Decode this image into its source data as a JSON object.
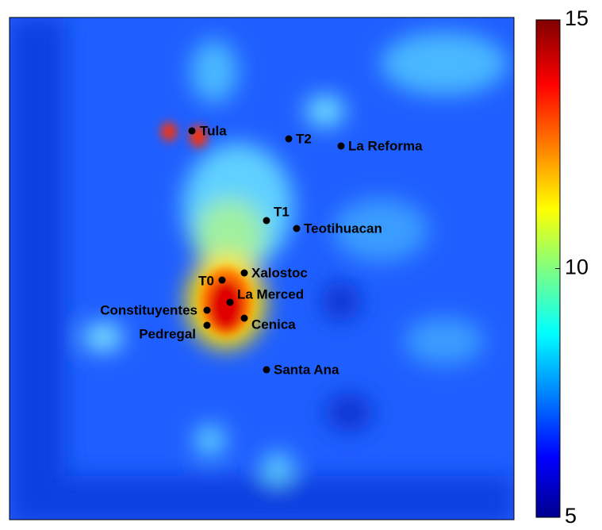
{
  "stations": [
    "Tula",
    "T2",
    "La Reforma",
    "T1",
    "Teotihuacan",
    "Xalostoc",
    "T0",
    "La Merced",
    "Constituyentes",
    "Pedregal",
    "Cenica",
    "Santa Ana"
  ],
  "colorbar": {
    "lim": [
      5,
      15
    ],
    "ticks": [
      5,
      10,
      15
    ]
  }
}
